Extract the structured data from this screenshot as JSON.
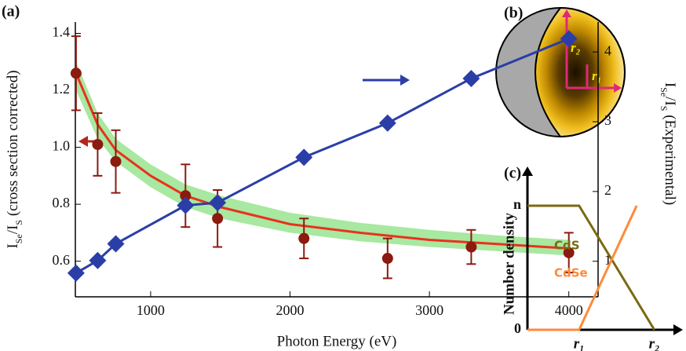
{
  "chart_data": [
    {
      "type": "line",
      "panel_label": "(a)",
      "x_label": "Photon Energy (eV)",
      "y_label_parts": [
        {
          "text": "I"
        },
        {
          "text": "Se",
          "sub": true
        },
        {
          "text": "/I"
        },
        {
          "text": "S",
          "sub": true
        },
        {
          "text": " (cross section corrected)"
        }
      ],
      "y2_label_parts": [
        {
          "text": "I"
        },
        {
          "text": "Se",
          "sub": true
        },
        {
          "text": "/I"
        },
        {
          "text": "S",
          "sub": true
        },
        {
          "text": " (Experimental)"
        }
      ],
      "xlim": [
        460,
        4210
      ],
      "xticks": [
        1000,
        2000,
        3000,
        4000
      ],
      "ylim": [
        0.475,
        1.44
      ],
      "yticks": [
        0.6,
        0.8,
        {
          "value": 1,
          "label": "1.0"
        },
        1.2,
        1.4
      ],
      "y2lim": [
        0.49,
        4.43
      ],
      "y2ticks": [
        1,
        2,
        3,
        4
      ],
      "series": [
        {
          "kind": "band",
          "color": "#a8e8a0",
          "x": [
            465,
            620,
            750,
            1000,
            1250,
            1500,
            2000,
            2500,
            3000,
            3500,
            4000
          ],
          "lower": [
            1.2,
            1.03,
            0.95,
            0.86,
            0.79,
            0.75,
            0.7,
            0.67,
            0.65,
            0.635,
            0.62
          ],
          "upper": [
            1.3,
            1.12,
            1.03,
            0.94,
            0.87,
            0.83,
            0.77,
            0.735,
            0.71,
            0.69,
            0.675
          ]
        },
        {
          "kind": "line",
          "color": "#e8321e",
          "x": [
            465,
            620,
            750,
            1000,
            1250,
            1500,
            2000,
            2500,
            3000,
            3500,
            4000
          ],
          "values": [
            1.26,
            1.08,
            0.99,
            0.9,
            0.83,
            0.79,
            0.73,
            0.7,
            0.675,
            0.66,
            0.645
          ]
        },
        {
          "kind": "points",
          "color": "#8b1a10",
          "x": [
            465,
            620,
            750,
            1250,
            1480,
            2100,
            2700,
            3300,
            4000
          ],
          "values": [
            1.26,
            1.01,
            0.95,
            0.83,
            0.75,
            0.68,
            0.61,
            0.65,
            0.63
          ],
          "errors": [
            0.13,
            0.11,
            0.11,
            0.11,
            0.1,
            0.07,
            0.07,
            0.06,
            0.07
          ]
        },
        {
          "kind": "diamond-line",
          "axis": "y2",
          "color": "#2b3ea8",
          "x": [
            465,
            620,
            750,
            1250,
            1480,
            2100,
            2700,
            3300,
            4000
          ],
          "values": [
            0.83,
            1.01,
            1.25,
            1.8,
            1.84,
            2.49,
            2.98,
            3.62,
            4.19
          ]
        }
      ]
    },
    {
      "type": "line",
      "panel_label": "(c)",
      "y_label": "Number density",
      "xlim": [
        0,
        1
      ],
      "xticks": [
        {
          "value": 0.35,
          "label": "r₁"
        },
        {
          "value": 0.86,
          "label": "r₂"
        }
      ],
      "ylim": [
        0,
        1.19
      ],
      "yticks": [
        0,
        {
          "value": 1,
          "label": "n"
        }
      ],
      "series": [
        {
          "name": "CdS",
          "color": "#7a6a12",
          "x": [
            0,
            0.35,
            0.86
          ],
          "values": [
            1,
            1,
            0
          ]
        },
        {
          "name": "CdSe",
          "color": "#ff8a3a",
          "x": [
            0,
            0.35,
            0.74
          ],
          "values": [
            0,
            0,
            1
          ]
        }
      ]
    }
  ],
  "diagram": {
    "panel_label": "(b)",
    "r1": "r₁",
    "r2": "r₂"
  }
}
